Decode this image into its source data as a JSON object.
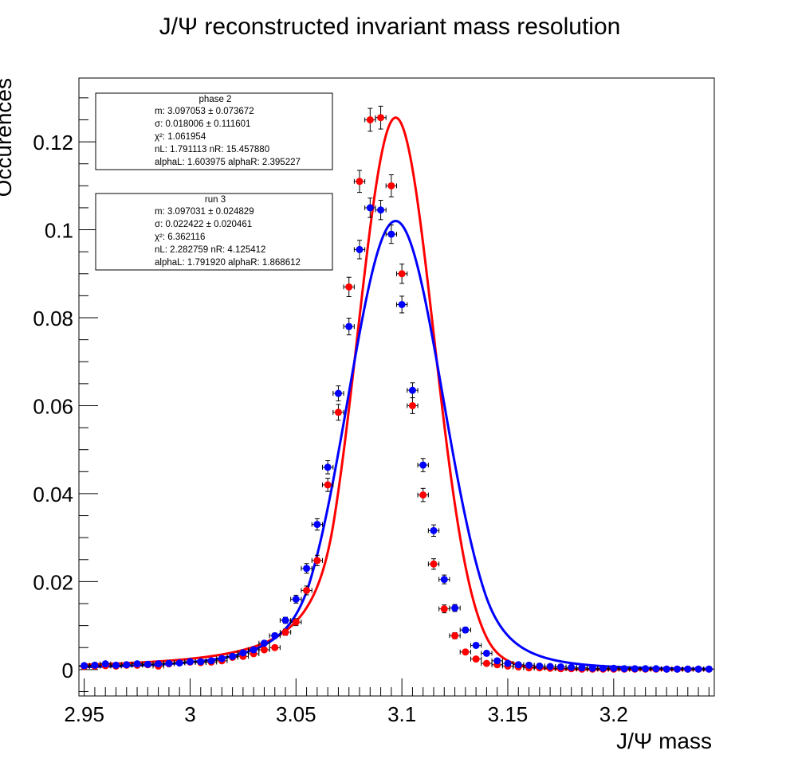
{
  "chart_data": {
    "type": "scatter",
    "title": "J/Ψ reconstructed invariant mass resolution",
    "xlabel": "J/Ψ mass",
    "ylabel": "Occurences",
    "xlim": [
      2.9475,
      3.2475
    ],
    "ylim": [
      -0.006,
      0.1345
    ],
    "x_ticks": [
      "2.95",
      "3",
      "3.05",
      "3.1",
      "3.15",
      "3.2"
    ],
    "x_tick_values": [
      2.95,
      3.0,
      3.05,
      3.1,
      3.15,
      3.2
    ],
    "y_ticks": [
      "0",
      "0.02",
      "0.04",
      "0.06",
      "0.08",
      "0.1",
      "0.12"
    ],
    "y_tick_values": [
      0,
      0.02,
      0.04,
      0.06,
      0.08,
      0.1,
      0.12
    ],
    "bin_half_width": 0.0025,
    "grid": false,
    "legend": "none",
    "series": [
      {
        "color": "#ff0000",
        "x": [
          2.95,
          2.955,
          2.96,
          2.965,
          2.97,
          2.975,
          2.98,
          2.985,
          2.99,
          2.995,
          3.0,
          3.005,
          3.01,
          3.015,
          3.02,
          3.025,
          3.03,
          3.035,
          3.04,
          3.045,
          3.05,
          3.055,
          3.06,
          3.065,
          3.07,
          3.075,
          3.08,
          3.085,
          3.09,
          3.095,
          3.1,
          3.105,
          3.11,
          3.115,
          3.12,
          3.125,
          3.13,
          3.135,
          3.14,
          3.145,
          3.15,
          3.155,
          3.16,
          3.165,
          3.17,
          3.175,
          3.18,
          3.185,
          3.19,
          3.195,
          3.2,
          3.205,
          3.21,
          3.215,
          3.22,
          3.225,
          3.23,
          3.235,
          3.24,
          3.245
        ],
        "y": [
          0.0007,
          0.0008,
          0.0009,
          0.0008,
          0.001,
          0.001,
          0.0011,
          0.0008,
          0.0013,
          0.0016,
          0.0017,
          0.0016,
          0.0017,
          0.002,
          0.0028,
          0.003,
          0.0036,
          0.0045,
          0.005,
          0.0085,
          0.0108,
          0.018,
          0.0248,
          0.042,
          0.0585,
          0.087,
          0.111,
          0.125,
          0.1255,
          0.11,
          0.09,
          0.06,
          0.0397,
          0.024,
          0.0138,
          0.0077,
          0.004,
          0.0024,
          0.0014,
          0.0011,
          0.0008,
          0.0006,
          0.0004,
          0.0004,
          0.0003,
          0.0002,
          0.0002,
          0.0001,
          0.0001,
          0.0001,
          0.0001,
          0.0001,
          0.0001,
          0.0001,
          0.0001,
          0.0001,
          0.0001,
          0.0001,
          0.0001,
          0.0001
        ],
        "y_err": [
          0.0002,
          0.0002,
          0.0002,
          0.0002,
          0.0002,
          0.0002,
          0.0002,
          0.0002,
          0.0003,
          0.0003,
          0.0003,
          0.0003,
          0.0003,
          0.0003,
          0.0004,
          0.0004,
          0.0004,
          0.0005,
          0.0005,
          0.0007,
          0.0008,
          0.001,
          0.0012,
          0.0015,
          0.0018,
          0.0022,
          0.0025,
          0.0026,
          0.0026,
          0.0025,
          0.0022,
          0.0018,
          0.0015,
          0.0012,
          0.0009,
          0.0007,
          0.0005,
          0.0004,
          0.0003,
          0.0003,
          0.0002,
          0.0002,
          0.0002,
          0.0002,
          0.0001,
          0.0001,
          0.0001,
          0.0001,
          0.0001,
          0.0001,
          0.0001,
          0.0001,
          0.0001,
          0.0001,
          0.0001,
          0.0001,
          0.0001,
          0.0001,
          0.0001,
          0.0001
        ],
        "fit": {
          "m": 3.097053,
          "sigma": 0.018006,
          "alphaL": 1.603975,
          "nL": 1.791113,
          "alphaR": 2.395227,
          "nR": 15.45788,
          "peak": 0.1255
        }
      },
      {
        "color": "#0000ff",
        "x": [
          2.95,
          2.955,
          2.96,
          2.965,
          2.97,
          2.975,
          2.98,
          2.985,
          2.99,
          2.995,
          3.0,
          3.005,
          3.01,
          3.015,
          3.02,
          3.025,
          3.03,
          3.035,
          3.04,
          3.045,
          3.05,
          3.055,
          3.06,
          3.065,
          3.07,
          3.075,
          3.08,
          3.085,
          3.09,
          3.095,
          3.1,
          3.105,
          3.11,
          3.115,
          3.12,
          3.125,
          3.13,
          3.135,
          3.14,
          3.145,
          3.15,
          3.155,
          3.16,
          3.165,
          3.17,
          3.175,
          3.18,
          3.185,
          3.19,
          3.195,
          3.2,
          3.205,
          3.21,
          3.215,
          3.22,
          3.225,
          3.23,
          3.235,
          3.24,
          3.245
        ],
        "y": [
          0.0009,
          0.001,
          0.0013,
          0.001,
          0.0011,
          0.0013,
          0.0012,
          0.0013,
          0.0014,
          0.0015,
          0.0018,
          0.0018,
          0.002,
          0.0025,
          0.003,
          0.0038,
          0.0045,
          0.006,
          0.0077,
          0.0112,
          0.016,
          0.023,
          0.033,
          0.046,
          0.0628,
          0.078,
          0.0955,
          0.105,
          0.1045,
          0.099,
          0.083,
          0.0635,
          0.0465,
          0.0316,
          0.0205,
          0.014,
          0.009,
          0.0055,
          0.0037,
          0.002,
          0.0014,
          0.0011,
          0.001,
          0.0008,
          0.0007,
          0.0006,
          0.0005,
          0.0004,
          0.0003,
          0.0003,
          0.0003,
          0.0002,
          0.0002,
          0.0002,
          0.0002,
          0.0001,
          0.0001,
          0.0001,
          0.0001,
          0.0001
        ],
        "y_err": [
          0.0002,
          0.0002,
          0.0002,
          0.0002,
          0.0002,
          0.0002,
          0.0002,
          0.0002,
          0.0003,
          0.0003,
          0.0003,
          0.0003,
          0.0003,
          0.0004,
          0.0004,
          0.0004,
          0.0005,
          0.0005,
          0.0006,
          0.0007,
          0.0009,
          0.0011,
          0.0013,
          0.0015,
          0.0017,
          0.0019,
          0.0021,
          0.0022,
          0.0022,
          0.0021,
          0.0019,
          0.0017,
          0.0015,
          0.0013,
          0.001,
          0.0008,
          0.0006,
          0.0005,
          0.0004,
          0.0003,
          0.0003,
          0.0003,
          0.0002,
          0.0002,
          0.0002,
          0.0002,
          0.0001,
          0.0001,
          0.0001,
          0.0001,
          0.0001,
          0.0001,
          0.0001,
          0.0001,
          0.0001,
          0.0001,
          0.0001,
          0.0001,
          0.0001,
          0.0001
        ],
        "fit": {
          "m": 3.097031,
          "sigma": 0.022422,
          "alphaL": 1.79192,
          "nL": 2.282759,
          "alphaR": 1.868612,
          "nR": 4.125412,
          "peak": 0.102
        }
      }
    ],
    "stat_boxes": [
      {
        "title": "phase 2",
        "lines": [
          "m: 3.097053  ± 0.073672",
          "σ: 0.018006  ± 0.111601",
          "χ²: 1.061954",
          "nL: 1.791113 nR: 15.457880",
          "alphaL: 1.603975 alphaR: 2.395227"
        ]
      },
      {
        "title": "run 3",
        "lines": [
          "m: 3.097031  ± 0.024829",
          "σ: 0.022422  ± 0.020461",
          "χ²: 6.362116",
          "nL: 2.282759 nR: 4.125412",
          "alphaL: 1.791920 alphaR: 1.868612"
        ]
      }
    ]
  }
}
